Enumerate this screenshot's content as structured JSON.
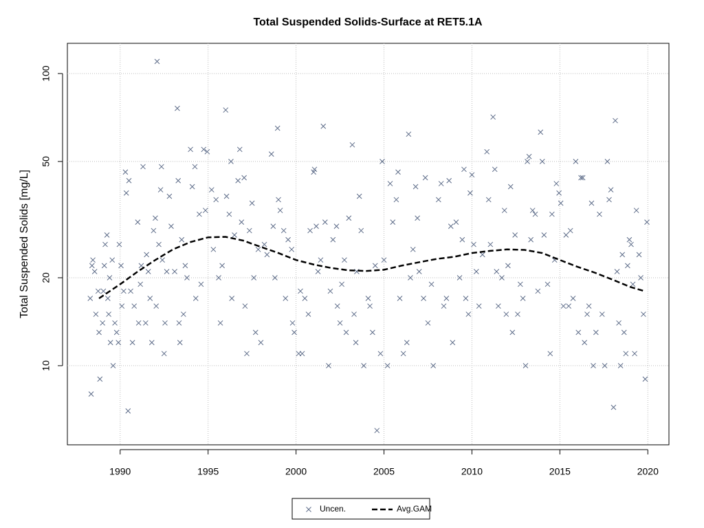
{
  "chart_data": {
    "type": "scatter",
    "title": "Total Suspended Solids-Surface at RET5.1A",
    "y_label": "Total Suspended Solids [mg/L]",
    "xlim": [
      1987,
      2021.2
    ],
    "xticks": [
      1990,
      1995,
      2000,
      2005,
      2010,
      2015,
      2020
    ],
    "ylim": [
      5.36,
      126.9
    ],
    "yticks": [
      10,
      20,
      50,
      100
    ],
    "y_log": true,
    "grid": true,
    "legend_position": "bottom",
    "series": [
      {
        "name": "Uncen.",
        "color": "#5b6a87",
        "marker": "x",
        "x": [
          1988.3,
          1988.35,
          1988.4,
          1988.45,
          1988.55,
          1988.62,
          1988.75,
          1988.8,
          1988.85,
          1989.0,
          1989.05,
          1989.1,
          1989.15,
          1989.25,
          1989.3,
          1989.35,
          1989.4,
          1989.45,
          1989.55,
          1989.6,
          1989.7,
          1989.8,
          1989.9,
          1989.95,
          1990.05,
          1990.1,
          1990.2,
          1990.3,
          1990.35,
          1990.45,
          1990.5,
          1990.6,
          1990.7,
          1990.8,
          1991.0,
          1991.05,
          1991.15,
          1991.2,
          1991.3,
          1991.45,
          1991.5,
          1991.6,
          1991.7,
          1991.8,
          1991.9,
          1992.0,
          1992.05,
          1992.1,
          1992.2,
          1992.3,
          1992.35,
          1992.4,
          1992.5,
          1992.55,
          1992.65,
          1992.8,
          1992.9,
          1993.1,
          1993.25,
          1993.3,
          1993.35,
          1993.4,
          1993.5,
          1993.6,
          1993.7,
          1993.8,
          1994.0,
          1994.1,
          1994.25,
          1994.3,
          1994.5,
          1994.6,
          1994.75,
          1994.85,
          1994.95,
          1995.2,
          1995.3,
          1995.45,
          1995.6,
          1995.7,
          1995.8,
          1996.0,
          1996.05,
          1996.2,
          1996.3,
          1996.35,
          1996.5,
          1996.7,
          1996.8,
          1996.9,
          1997.05,
          1997.1,
          1997.2,
          1997.35,
          1997.5,
          1997.6,
          1997.7,
          1997.85,
          1998.0,
          1998.2,
          1998.35,
          1998.6,
          1998.7,
          1998.8,
          1998.95,
          1999.0,
          1999.1,
          1999.3,
          1999.4,
          1999.55,
          1999.75,
          1999.8,
          1999.9,
          2000.15,
          2000.25,
          2000.35,
          2000.5,
          2000.7,
          2000.8,
          2001.0,
          2001.05,
          2001.15,
          2001.25,
          2001.4,
          2001.55,
          2001.65,
          2001.85,
          2001.95,
          2002.1,
          2002.3,
          2002.35,
          2002.5,
          2002.6,
          2002.75,
          2002.85,
          2003.0,
          2003.2,
          2003.3,
          2003.4,
          2003.45,
          2003.6,
          2003.7,
          2003.85,
          2004.1,
          2004.2,
          2004.35,
          2004.5,
          2004.6,
          2004.8,
          2004.9,
          2005.0,
          2005.2,
          2005.35,
          2005.5,
          2005.7,
          2005.8,
          2005.9,
          2006.1,
          2006.3,
          2006.4,
          2006.5,
          2006.65,
          2006.8,
          2006.9,
          2007.0,
          2007.25,
          2007.35,
          2007.5,
          2007.7,
          2007.8,
          2008.1,
          2008.25,
          2008.4,
          2008.55,
          2008.7,
          2008.8,
          2008.9,
          2009.1,
          2009.3,
          2009.45,
          2009.55,
          2009.65,
          2009.8,
          2009.9,
          2010.0,
          2010.1,
          2010.25,
          2010.4,
          2010.6,
          2010.85,
          2010.95,
          2011.05,
          2011.2,
          2011.3,
          2011.4,
          2011.5,
          2011.7,
          2011.85,
          2011.95,
          2012.05,
          2012.2,
          2012.3,
          2012.45,
          2012.6,
          2012.75,
          2012.9,
          2013.05,
          2013.15,
          2013.25,
          2013.35,
          2013.45,
          2013.6,
          2013.75,
          2013.9,
          2014.0,
          2014.1,
          2014.3,
          2014.45,
          2014.55,
          2014.7,
          2014.8,
          2014.95,
          2015.05,
          2015.2,
          2015.35,
          2015.5,
          2015.6,
          2015.75,
          2015.9,
          2016.05,
          2016.2,
          2016.3,
          2016.4,
          2016.55,
          2016.65,
          2016.8,
          2016.9,
          2017.05,
          2017.25,
          2017.4,
          2017.55,
          2017.7,
          2017.8,
          2017.9,
          2018.05,
          2018.15,
          2018.25,
          2018.35,
          2018.45,
          2018.55,
          2018.65,
          2018.75,
          2018.85,
          2018.95,
          2019.05,
          2019.15,
          2019.25,
          2019.35,
          2019.5,
          2019.6,
          2019.75,
          2019.85,
          2019.95
        ],
        "values": [
          17,
          8,
          22,
          23,
          21,
          15,
          18,
          13,
          9,
          14,
          18,
          22,
          26,
          28,
          17,
          15,
          20,
          12,
          23,
          10,
          14,
          13,
          12,
          26,
          22,
          16,
          18,
          46,
          39,
          7,
          43,
          18,
          12,
          16,
          31,
          14,
          19,
          22,
          48,
          14,
          24,
          21,
          17,
          12,
          29,
          32,
          16,
          110,
          26,
          40,
          48,
          23,
          11,
          14,
          21,
          38,
          30,
          21,
          76,
          43,
          14,
          12,
          27,
          15,
          22,
          20,
          55,
          41,
          48,
          17,
          33,
          19,
          55,
          34,
          54,
          40,
          25,
          37,
          20,
          14,
          22,
          75,
          38,
          33,
          50,
          17,
          28,
          43,
          55,
          31,
          44,
          16,
          11,
          29,
          36,
          20,
          13,
          25,
          12,
          26,
          24,
          53,
          30,
          20,
          65,
          37,
          34,
          29,
          17,
          27,
          25,
          14,
          13,
          11,
          18,
          11,
          17,
          15,
          29,
          46,
          47,
          30,
          21,
          23,
          66,
          31,
          10,
          18,
          27,
          30,
          16,
          14,
          19,
          23,
          13,
          32,
          57,
          15,
          12,
          21,
          38,
          29,
          10,
          17,
          16,
          13,
          22,
          6,
          11,
          50,
          23,
          10,
          42,
          31,
          37,
          46,
          17,
          11,
          12,
          62,
          20,
          25,
          41,
          32,
          21,
          17,
          44,
          14,
          19,
          10,
          37,
          42,
          16,
          17,
          43,
          30,
          12,
          31,
          20,
          27,
          47,
          17,
          15,
          39,
          45,
          26,
          21,
          16,
          24,
          54,
          37,
          26,
          71,
          47,
          21,
          16,
          20,
          34,
          15,
          22,
          41,
          13,
          28,
          15,
          19,
          17,
          10,
          50,
          52,
          27,
          34,
          33,
          18,
          63,
          50,
          28,
          19,
          11,
          33,
          23,
          42,
          39,
          36,
          16,
          28,
          16,
          29,
          17,
          50,
          13,
          44,
          44,
          12,
          15,
          16,
          36,
          10,
          13,
          33,
          15,
          10,
          50,
          37,
          40,
          7.2,
          69,
          21,
          14,
          10,
          24,
          13,
          11,
          22,
          27,
          26,
          19,
          11,
          34,
          24,
          20,
          15,
          9,
          31
        ]
      },
      {
        "name": "Avg.GAM",
        "color": "#000000",
        "marker": "dashed-line",
        "x": [
          1988.8,
          1990,
          1991,
          1992,
          1993,
          1994,
          1995,
          1996,
          1997,
          1998,
          1999,
          2000,
          2001,
          2002,
          2003,
          2004,
          2005,
          2006,
          2007,
          2008,
          2009,
          2010,
          2011,
          2012,
          2013,
          2014,
          2015,
          2016,
          2017,
          2018,
          2019,
          2019.8
        ],
        "values": [
          17,
          19,
          21,
          23,
          25,
          26.5,
          27.5,
          27.6,
          26.8,
          25.5,
          24.3,
          23,
          22.2,
          21.6,
          21.2,
          21.1,
          21.3,
          22,
          22.6,
          23.2,
          23.6,
          24.3,
          24.7,
          25,
          24.9,
          24.3,
          23,
          21.8,
          20.8,
          19.7,
          18.6,
          18
        ]
      }
    ]
  }
}
